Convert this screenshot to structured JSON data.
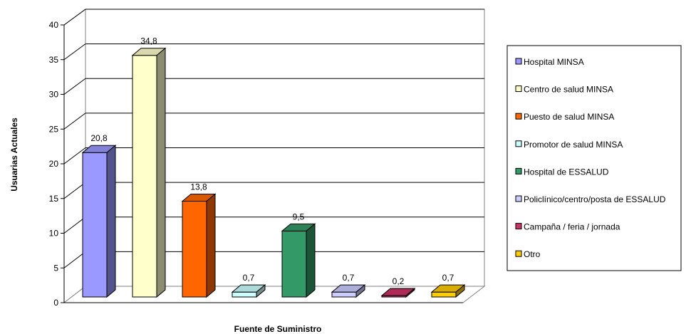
{
  "chart_data": {
    "type": "bar",
    "three_d": true,
    "categories": [
      "Hospital MINSA",
      "Centro de salud MINSA",
      "Puesto de salud MINSA",
      "Promotor de salud MINSA",
      "Hospital de ESSALUD",
      "Policlinico/centro/posta de ESSALUD",
      "Campaña / feria / jornada",
      "Otro"
    ],
    "values": [
      20.8,
      34.8,
      13.8,
      0.7,
      9.5,
      0.7,
      0.2,
      0.7
    ],
    "value_labels": [
      "20,8",
      "34,8",
      "13,8",
      "0,7",
      "9,5",
      "0,7",
      "0,2",
      "0,7"
    ],
    "colors": [
      "#9999ff",
      "#ffffcc",
      "#ff6600",
      "#ccffff",
      "#339966",
      "#ccccff",
      "#cc3366",
      "#ffcc00"
    ],
    "xlabel": "Fuente de Suministro",
    "ylabel": "Usuarias Actuales",
    "ylim": [
      0,
      40
    ],
    "yticks": [
      0,
      5,
      10,
      15,
      20,
      25,
      30,
      35,
      40
    ],
    "grid": true,
    "legend_position": "right",
    "legend_labels": [
      "Hospital MINSA",
      "Centro de salud MINSA",
      "Puesto de salud MINSA",
      "Promotor de salud MINSA",
      "Hospital de ESSALUD",
      "Policlínico/centro/posta de ESSALUD",
      "Campaña / feria / jornada",
      "Otro"
    ]
  }
}
